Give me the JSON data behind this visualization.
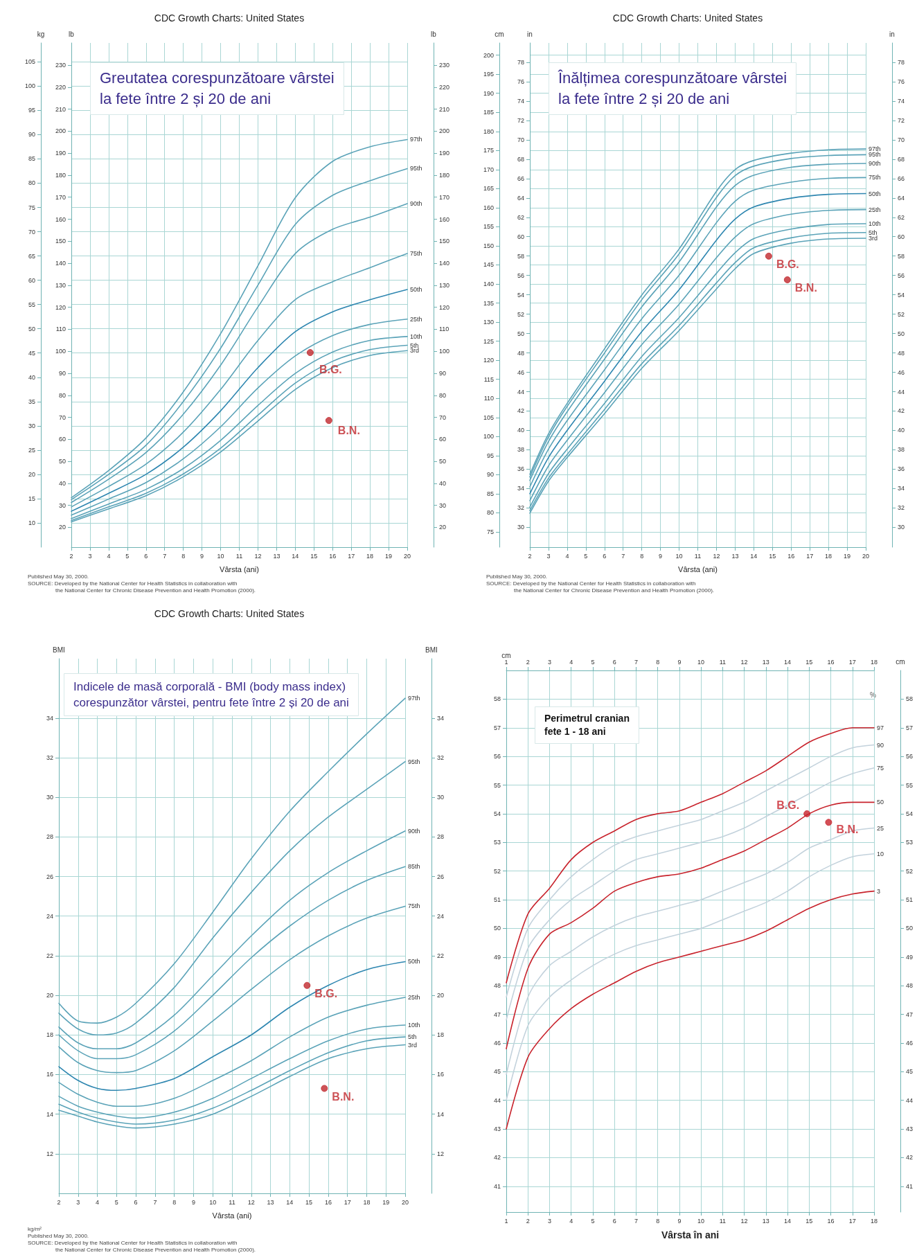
{
  "chart_data": [
    {
      "type": "line",
      "title": "CDC Growth Charts: United States",
      "subtitle": "Greutatea corespunzătoare vârstei\nla fete între 2 și 20 de ani",
      "xlabel": "Vârsta (ani)",
      "ylabel": "kg",
      "y2label": "lb",
      "y3label": "lb",
      "x": [
        2,
        4,
        6,
        8,
        10,
        12,
        14,
        16,
        18,
        20
      ],
      "xlim": [
        2,
        20
      ],
      "xticks": [
        2,
        3,
        4,
        5,
        6,
        7,
        8,
        9,
        10,
        11,
        12,
        13,
        14,
        15,
        16,
        17,
        18,
        19,
        20
      ],
      "ylim": [
        5,
        108.9
      ],
      "yticks": [
        10,
        15,
        20,
        25,
        30,
        35,
        40,
        45,
        50,
        55,
        60,
        65,
        70,
        75,
        80,
        85,
        90,
        95,
        100,
        105
      ],
      "y2lim": [
        11.02,
        240.08
      ],
      "y2ticks": [
        20,
        30,
        40,
        50,
        60,
        70,
        80,
        90,
        100,
        110,
        120,
        130,
        140,
        150,
        160,
        170,
        180,
        190,
        200,
        210,
        220,
        230
      ],
      "y3lim": [
        11.02,
        240.08
      ],
      "y3ticks": [
        20,
        30,
        40,
        50,
        60,
        70,
        80,
        90,
        100,
        110,
        120,
        130,
        140,
        150,
        160,
        170,
        180,
        190,
        200,
        210,
        220,
        230
      ],
      "grid": true,
      "legend": false,
      "marker": "none",
      "line_style": "solid",
      "series": [
        {
          "name": "97th",
          "color": "#5ba3b8",
          "values": [
            15.2,
            20.8,
            27.5,
            37.0,
            49.0,
            63.0,
            77.0,
            84.5,
            87.5,
            89.0
          ]
        },
        {
          "name": "95th",
          "color": "#5ba3b8",
          "values": [
            14.8,
            20.0,
            26.0,
            35.0,
            46.0,
            59.0,
            71.5,
            77.5,
            80.5,
            83.0
          ]
        },
        {
          "name": "90th",
          "color": "#5ba3b8",
          "values": [
            14.2,
            19.0,
            24.5,
            32.4,
            42.5,
            54.5,
            65.5,
            70.5,
            73.0,
            75.8
          ]
        },
        {
          "name": "75th",
          "color": "#5ba3b8",
          "values": [
            13.3,
            17.5,
            22.1,
            28.7,
            37.5,
            47.6,
            56.0,
            59.7,
            62.6,
            65.5
          ]
        },
        {
          "name": "50th",
          "color": "#2e86b0",
          "values": [
            12.4,
            16.1,
            20.0,
            25.6,
            33.1,
            42.0,
            49.4,
            53.5,
            56.0,
            58.1
          ]
        },
        {
          "name": "25th",
          "color": "#5ba3b8",
          "values": [
            11.6,
            14.9,
            18.3,
            23.2,
            29.8,
            37.8,
            44.4,
            48.6,
            50.9,
            52.0
          ]
        },
        {
          "name": "10th",
          "color": "#5ba3b8",
          "values": [
            10.9,
            13.9,
            16.9,
            21.2,
            27.0,
            34.2,
            40.8,
            45.2,
            47.6,
            48.4
          ]
        },
        {
          "name": "5th",
          "color": "#5ba3b8",
          "values": [
            10.5,
            13.3,
            16.1,
            20.1,
            25.4,
            32.2,
            38.8,
            43.3,
            45.7,
            46.6
          ]
        },
        {
          "name": "3rd",
          "color": "#5ba3b8",
          "values": [
            10.2,
            12.9,
            15.6,
            19.5,
            24.6,
            31.0,
            37.5,
            42.0,
            44.5,
            45.5
          ]
        },
        {
          "name": "B.G.",
          "type": "scatter",
          "marker": "circle",
          "color": "#c0282d",
          "x": [
            14.8
          ],
          "values": [
            45.1
          ]
        },
        {
          "name": "B.N.",
          "type": "scatter",
          "marker": "circle",
          "color": "#c0282d",
          "x": [
            15.8
          ],
          "values": [
            31.1
          ]
        }
      ],
      "annotations": [
        "Published May 30, 2000.",
        "SOURCE: Developed by the National Center for Health Statistics in collaboration with",
        "the National Center for Chronic Disease Prevention and Health Promotion (2000)."
      ]
    },
    {
      "type": "line",
      "title": "CDC Growth Charts: United States",
      "subtitle": "Înălțimea corespunzătoare vârstei\nla fete între 2 și 20 de ani",
      "xlabel": "Vârsta (ani)",
      "ylabel": "cm",
      "y2label": "in",
      "y3label": "in",
      "x": [
        2,
        3,
        4,
        6,
        8,
        10,
        12,
        13,
        14,
        16,
        18,
        20
      ],
      "xlim": [
        2,
        20
      ],
      "xticks": [
        2,
        3,
        4,
        5,
        6,
        7,
        8,
        9,
        10,
        11,
        12,
        13,
        14,
        15,
        16,
        17,
        18,
        19,
        20
      ],
      "ylim": [
        71,
        203.2
      ],
      "yticks": [
        75,
        80,
        85,
        90,
        95,
        100,
        105,
        110,
        115,
        120,
        125,
        130,
        135,
        140,
        145,
        150,
        155,
        160,
        165,
        170,
        175,
        180,
        185,
        190,
        195,
        200
      ],
      "y2lim": [
        27.95,
        80
      ],
      "y2ticks": [
        30,
        32,
        34,
        36,
        38,
        40,
        42,
        44,
        46,
        48,
        50,
        52,
        54,
        56,
        58,
        60,
        62,
        64,
        66,
        68,
        70,
        72,
        74,
        76,
        78
      ],
      "y3lim": [
        27.95,
        80
      ],
      "y3ticks": [
        30,
        32,
        34,
        36,
        38,
        40,
        42,
        44,
        46,
        48,
        50,
        52,
        54,
        56,
        58,
        60,
        62,
        64,
        66,
        68,
        70,
        72,
        74,
        76,
        78
      ],
      "grid": true,
      "legend": false,
      "marker": "none",
      "line_style": "solid",
      "series": [
        {
          "name": "97th",
          "color": "#5ba3b8",
          "values": [
            90.1,
            100.7,
            108.7,
            123.0,
            137.1,
            149.2,
            164.3,
            170.0,
            172.4,
            174.3,
            175.2,
            175.4
          ]
        },
        {
          "name": "95th",
          "color": "#5ba3b8",
          "values": [
            89.4,
            99.9,
            107.9,
            121.9,
            135.9,
            147.9,
            162.7,
            168.4,
            170.9,
            172.9,
            173.7,
            173.9
          ]
        },
        {
          "name": "90th",
          "color": "#5ba3b8",
          "values": [
            88.5,
            98.7,
            106.5,
            120.3,
            134.0,
            145.8,
            160.2,
            165.8,
            168.5,
            170.6,
            171.4,
            171.6
          ]
        },
        {
          "name": "75th",
          "color": "#5ba3b8",
          "values": [
            86.8,
            96.7,
            104.2,
            117.5,
            130.9,
            142.3,
            156.1,
            161.7,
            164.6,
            166.7,
            167.7,
            167.9
          ]
        },
        {
          "name": "50th",
          "color": "#2e86b0",
          "values": [
            85.0,
            94.5,
            101.6,
            114.5,
            127.5,
            138.5,
            151.5,
            157.0,
            160.2,
            162.5,
            163.5,
            163.7
          ]
        },
        {
          "name": "25th",
          "color": "#5ba3b8",
          "values": [
            83.2,
            92.3,
            99.0,
            111.5,
            124.1,
            134.7,
            146.9,
            152.3,
            155.8,
            158.3,
            159.3,
            159.5
          ]
        },
        {
          "name": "10th",
          "color": "#5ba3b8",
          "values": [
            81.5,
            90.3,
            96.7,
            108.7,
            121.0,
            131.2,
            142.8,
            148.2,
            151.9,
            154.4,
            155.6,
            155.8
          ]
        },
        {
          "name": "5th",
          "color": "#5ba3b8",
          "values": [
            80.6,
            89.1,
            95.3,
            107.1,
            119.1,
            129.1,
            140.3,
            145.6,
            149.5,
            152.1,
            153.3,
            153.5
          ]
        },
        {
          "name": "3rd",
          "color": "#5ba3b8",
          "values": [
            79.9,
            88.3,
            94.5,
            106.0,
            117.9,
            127.8,
            138.7,
            144.0,
            148.0,
            150.7,
            151.8,
            152.0
          ]
        },
        {
          "name": "B.G.",
          "type": "scatter",
          "marker": "circle",
          "color": "#c0282d",
          "x": [
            14.8
          ],
          "values": [
            147.3
          ]
        },
        {
          "name": "B.N.",
          "type": "scatter",
          "marker": "circle",
          "color": "#c0282d",
          "x": [
            15.8
          ],
          "values": [
            141.1
          ]
        }
      ],
      "annotations": [
        "Published May 30, 2000.",
        "SOURCE: Developed by the National Center for Health Statistics in collaboration with",
        "the National Center for Chronic Disease Prevention and Health Promotion (2000)."
      ]
    },
    {
      "type": "line",
      "title": "CDC Growth Charts: United States",
      "subtitle": "Indicele de masă corporală - BMI (body mass index)\ncorespunzător vârstei, pentru fete între 2 și 20 de ani",
      "xlabel": "Vârsta (ani)",
      "ylabel": "BMI",
      "y2label": "BMI",
      "x": [
        2,
        3,
        4,
        5,
        6,
        8,
        10,
        12,
        14,
        16,
        18,
        20
      ],
      "xlim": [
        2,
        20
      ],
      "xticks": [
        2,
        3,
        4,
        5,
        6,
        7,
        8,
        9,
        10,
        11,
        12,
        13,
        14,
        15,
        16,
        17,
        18,
        19,
        20
      ],
      "ylim": [
        10,
        37
      ],
      "yticks": [
        12,
        14,
        16,
        18,
        20,
        22,
        24,
        26,
        28,
        30,
        32,
        34
      ],
      "y2lim": [
        10,
        37
      ],
      "y2ticks": [
        12,
        14,
        16,
        18,
        20,
        22,
        24,
        26,
        28,
        30,
        32,
        34
      ],
      "grid": true,
      "legend": false,
      "marker": "none",
      "line_style": "solid",
      "series": [
        {
          "name": "97th",
          "color": "#5ba3b8",
          "values": [
            19.6,
            18.7,
            18.6,
            18.9,
            19.6,
            21.6,
            24.2,
            26.9,
            29.3,
            31.3,
            33.2,
            35.0
          ]
        },
        {
          "name": "95th",
          "color": "#5ba3b8",
          "values": [
            19.1,
            18.3,
            18.0,
            18.1,
            18.6,
            20.4,
            22.9,
            25.2,
            27.3,
            29.0,
            30.4,
            31.8
          ]
        },
        {
          "name": "90th",
          "color": "#5ba3b8",
          "values": [
            18.4,
            17.6,
            17.3,
            17.3,
            17.6,
            19.0,
            21.0,
            23.0,
            24.8,
            26.2,
            27.3,
            28.3
          ]
        },
        {
          "name": "85th",
          "color": "#5ba3b8",
          "values": [
            18.0,
            17.2,
            16.8,
            16.8,
            17.0,
            18.2,
            20.0,
            21.9,
            23.5,
            24.8,
            25.8,
            26.5
          ]
        },
        {
          "name": "75th",
          "color": "#5ba3b8",
          "values": [
            17.4,
            16.6,
            16.2,
            16.1,
            16.2,
            17.2,
            18.7,
            20.3,
            21.8,
            23.0,
            23.9,
            24.5
          ]
        },
        {
          "name": "50th",
          "color": "#2e86b0",
          "values": [
            16.4,
            15.7,
            15.3,
            15.2,
            15.3,
            15.8,
            16.9,
            18.0,
            19.4,
            20.5,
            21.3,
            21.7
          ]
        },
        {
          "name": "25th",
          "color": "#5ba3b8",
          "values": [
            15.6,
            15.0,
            14.6,
            14.4,
            14.4,
            14.8,
            15.7,
            16.7,
            17.9,
            18.9,
            19.5,
            19.9
          ]
        },
        {
          "name": "10th",
          "color": "#5ba3b8",
          "values": [
            14.9,
            14.4,
            14.1,
            13.9,
            13.8,
            14.1,
            14.8,
            15.8,
            16.8,
            17.7,
            18.3,
            18.5
          ]
        },
        {
          "name": "5th",
          "color": "#5ba3b8",
          "values": [
            14.5,
            14.1,
            13.8,
            13.6,
            13.5,
            13.7,
            14.3,
            15.2,
            16.2,
            17.1,
            17.7,
            17.9
          ]
        },
        {
          "name": "3rd",
          "color": "#5ba3b8",
          "values": [
            14.2,
            13.9,
            13.6,
            13.4,
            13.3,
            13.5,
            14.0,
            14.9,
            15.9,
            16.8,
            17.3,
            17.5
          ]
        },
        {
          "name": "B.G.",
          "type": "scatter",
          "marker": "circle",
          "color": "#c0282d",
          "x": [
            14.9
          ],
          "values": [
            20.5
          ]
        },
        {
          "name": "B.N.",
          "type": "scatter",
          "marker": "circle",
          "color": "#c0282d",
          "x": [
            15.8
          ],
          "values": [
            15.3
          ]
        }
      ],
      "annotations": [
        "kg/m²",
        "Published May 30, 2000.",
        "SOURCE: Developed by the National Center for Health Statistics in collaboration with",
        "the National Center for Chronic Disease Prevention and Health Promotion (2000)."
      ]
    },
    {
      "type": "line",
      "subtitle": "Perimetrul cranian\nfete 1 - 18 ani",
      "xlabel": "Vârsta în ani",
      "ylabel": "cm",
      "y2label": "cm",
      "legend_title": "%",
      "x": [
        1,
        2,
        3,
        4,
        5,
        6,
        7,
        8,
        9,
        10,
        11,
        12,
        13,
        14,
        15,
        16,
        17,
        18
      ],
      "xlim": [
        1,
        18
      ],
      "xticks": [
        1,
        2,
        3,
        4,
        5,
        6,
        7,
        8,
        9,
        10,
        11,
        12,
        13,
        14,
        15,
        16,
        17,
        18
      ],
      "x2lim": [
        1,
        18
      ],
      "x2ticks": [
        1,
        2,
        3,
        4,
        5,
        6,
        7,
        8,
        9,
        10,
        11,
        12,
        13,
        14,
        15,
        16,
        17,
        18
      ],
      "ylim": [
        40.1,
        59
      ],
      "yticks": [
        41,
        42,
        43,
        44,
        45,
        46,
        47,
        48,
        49,
        50,
        51,
        52,
        53,
        54,
        55,
        56,
        57,
        58
      ],
      "y2lim": [
        40.1,
        59
      ],
      "y2ticks": [
        41,
        42,
        43,
        44,
        45,
        46,
        47,
        48,
        49,
        50,
        51,
        52,
        53,
        54,
        55,
        56,
        57,
        58
      ],
      "grid": true,
      "legend": false,
      "marker": "none",
      "line_style": "solid",
      "series": [
        {
          "name": "97",
          "color": "#c8232c",
          "values": [
            48.1,
            50.5,
            51.4,
            52.4,
            53.0,
            53.4,
            53.8,
            54.0,
            54.1,
            54.4,
            54.7,
            55.1,
            55.5,
            56.0,
            56.5,
            56.8,
            57.0,
            57.0
          ]
        },
        {
          "name": "90",
          "color": "#c3d2dc",
          "values": [
            47.6,
            50.0,
            51.0,
            51.8,
            52.4,
            52.9,
            53.2,
            53.4,
            53.6,
            53.8,
            54.1,
            54.4,
            54.8,
            55.2,
            55.6,
            56.0,
            56.3,
            56.4
          ]
        },
        {
          "name": "75",
          "color": "#c3d2dc",
          "values": [
            46.8,
            49.3,
            50.3,
            51.0,
            51.5,
            52.0,
            52.4,
            52.6,
            52.8,
            53.0,
            53.2,
            53.5,
            53.9,
            54.3,
            54.7,
            55.1,
            55.4,
            55.6
          ]
        },
        {
          "name": "50",
          "color": "#c8232c",
          "values": [
            45.8,
            48.6,
            49.8,
            50.2,
            50.7,
            51.3,
            51.6,
            51.8,
            51.9,
            52.1,
            52.4,
            52.7,
            53.1,
            53.5,
            54.0,
            54.3,
            54.4,
            54.4
          ]
        },
        {
          "name": "25",
          "color": "#c3d2dc",
          "values": [
            44.9,
            47.6,
            48.7,
            49.2,
            49.7,
            50.1,
            50.4,
            50.6,
            50.8,
            51.0,
            51.3,
            51.6,
            51.9,
            52.3,
            52.8,
            53.1,
            53.4,
            53.5
          ]
        },
        {
          "name": "10",
          "color": "#c3d2dc",
          "values": [
            44.0,
            46.6,
            47.6,
            48.2,
            48.7,
            49.1,
            49.4,
            49.6,
            49.8,
            50.0,
            50.3,
            50.6,
            50.9,
            51.3,
            51.8,
            52.2,
            52.5,
            52.6
          ]
        },
        {
          "name": "3",
          "color": "#c8232c",
          "values": [
            43.0,
            45.5,
            46.5,
            47.2,
            47.7,
            48.1,
            48.5,
            48.8,
            49.0,
            49.2,
            49.4,
            49.6,
            49.9,
            50.3,
            50.7,
            51.0,
            51.2,
            51.3
          ]
        },
        {
          "name": "B.G.",
          "type": "scatter",
          "marker": "circle",
          "color": "#c8232c",
          "x": [
            14.9
          ],
          "values": [
            54.0
          ]
        },
        {
          "name": "B.N.",
          "type": "scatter",
          "marker": "circle",
          "color": "#c8232c",
          "x": [
            15.9
          ],
          "values": [
            53.7
          ]
        }
      ]
    }
  ]
}
